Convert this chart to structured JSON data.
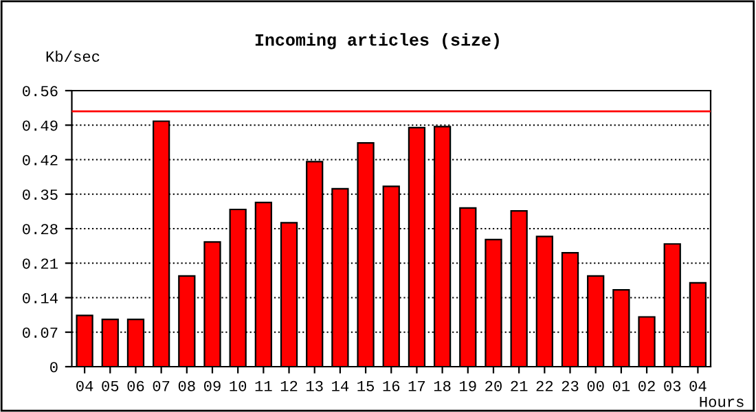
{
  "chart_data": {
    "type": "bar",
    "title": "Incoming articles (size)",
    "xlabel": "Hours",
    "ylabel": "Kb/sec",
    "categories": [
      "04",
      "05",
      "06",
      "07",
      "08",
      "09",
      "10",
      "11",
      "12",
      "13",
      "14",
      "15",
      "16",
      "17",
      "18",
      "19",
      "20",
      "21",
      "22",
      "23",
      "00",
      "01",
      "02",
      "03",
      "04"
    ],
    "values": [
      0.104,
      0.096,
      0.096,
      0.498,
      0.184,
      0.253,
      0.319,
      0.333,
      0.292,
      0.416,
      0.361,
      0.454,
      0.366,
      0.485,
      0.487,
      0.322,
      0.258,
      0.316,
      0.264,
      0.231,
      0.184,
      0.156,
      0.101,
      0.249,
      0.17
    ],
    "color": "#ff0000",
    "ylim": [
      0,
      0.56
    ],
    "yticks": [
      0,
      0.07,
      0.14,
      0.21,
      0.28,
      0.35,
      0.42,
      0.49,
      0.56
    ],
    "grid": "y",
    "line_style": "dotted",
    "ref_lines": [
      {
        "axis": "y",
        "value": 0.518,
        "color": "#ff0000"
      }
    ]
  }
}
